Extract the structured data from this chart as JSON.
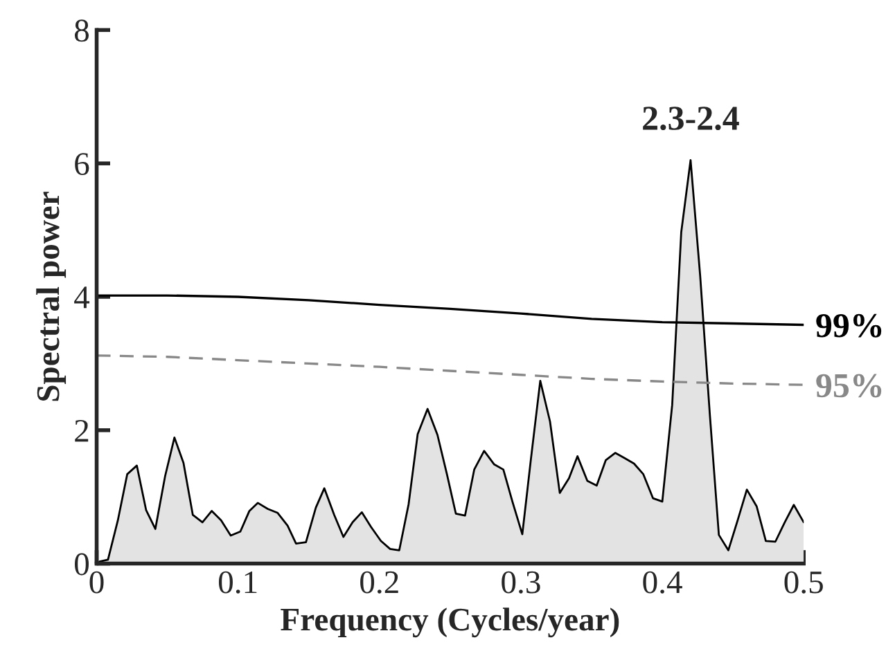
{
  "chart_data": {
    "type": "area",
    "xlabel": "Frequency (Cycles/year)",
    "ylabel": "Spectral power",
    "xlim": [
      0,
      0.5
    ],
    "ylim": [
      0,
      8
    ],
    "xticks": [
      0,
      0.1,
      0.2,
      0.3,
      0.4,
      0.5
    ],
    "yticks": [
      0,
      2,
      4,
      6,
      8
    ],
    "grid": false,
    "legend": false,
    "annotations": [
      {
        "text": "2.3-2.4",
        "x": 0.42,
        "y": 6.05
      }
    ],
    "series": [
      {
        "color": "#e3e3e3",
        "x": [
          0.002,
          0.008,
          0.015,
          0.0216,
          0.0284,
          0.035,
          0.0415,
          0.0484,
          0.055,
          0.0614,
          0.068,
          0.0748,
          0.0814,
          0.088,
          0.0948,
          0.1016,
          0.108,
          0.114,
          0.121,
          0.128,
          0.135,
          0.141,
          0.148,
          0.155,
          0.161,
          0.168,
          0.1745,
          0.181,
          0.1875,
          0.194,
          0.201,
          0.2075,
          0.214,
          0.2206,
          0.227,
          0.234,
          0.241,
          0.2477,
          0.254,
          0.2605,
          0.267,
          0.274,
          0.281,
          0.2876,
          0.294,
          0.301,
          0.307,
          0.3137,
          0.3206,
          0.3275,
          0.334,
          0.34,
          0.347,
          0.3536,
          0.36,
          0.3667,
          0.3735,
          0.38,
          0.3866,
          0.3934,
          0.4,
          0.407,
          0.4134,
          0.42,
          0.4268,
          0.4336,
          0.44,
          0.4467,
          0.4533,
          0.4598,
          0.4667,
          0.4732,
          0.48,
          0.4866,
          0.493,
          0.5
        ],
        "values": [
          0.03,
          0.06,
          0.65,
          1.34,
          1.47,
          0.8,
          0.52,
          1.31,
          1.89,
          1.51,
          0.73,
          0.62,
          0.79,
          0.65,
          0.42,
          0.48,
          0.79,
          0.91,
          0.82,
          0.76,
          0.57,
          0.3,
          0.32,
          0.84,
          1.13,
          0.73,
          0.4,
          0.62,
          0.77,
          0.55,
          0.34,
          0.22,
          0.2,
          0.89,
          1.94,
          2.32,
          1.93,
          1.34,
          0.75,
          0.72,
          1.41,
          1.69,
          1.49,
          1.41,
          0.93,
          0.44,
          1.55,
          2.74,
          2.13,
          1.06,
          1.28,
          1.61,
          1.24,
          1.17,
          1.55,
          1.66,
          1.58,
          1.5,
          1.34,
          0.98,
          0.93,
          2.38,
          4.97,
          6.05,
          4.31,
          2.24,
          0.43,
          0.2,
          0.65,
          1.11,
          0.86,
          0.34,
          0.33,
          0.62,
          0.88,
          0.62
        ]
      },
      {
        "type": "line",
        "name": "99%",
        "color": "#000000",
        "line_style": "solid",
        "x": [
          0,
          0.05,
          0.1,
          0.15,
          0.2,
          0.25,
          0.3,
          0.35,
          0.4,
          0.45,
          0.5
        ],
        "values": [
          4.02,
          4.02,
          4.0,
          3.95,
          3.88,
          3.82,
          3.75,
          3.67,
          3.62,
          3.6,
          3.58
        ]
      },
      {
        "type": "line",
        "name": "95%",
        "color": "#888888",
        "line_style": "dashed",
        "x": [
          0,
          0.05,
          0.1,
          0.15,
          0.2,
          0.25,
          0.3,
          0.35,
          0.4,
          0.45,
          0.5
        ],
        "values": [
          3.12,
          3.1,
          3.05,
          3.0,
          2.95,
          2.89,
          2.83,
          2.77,
          2.73,
          2.7,
          2.68
        ]
      }
    ]
  }
}
